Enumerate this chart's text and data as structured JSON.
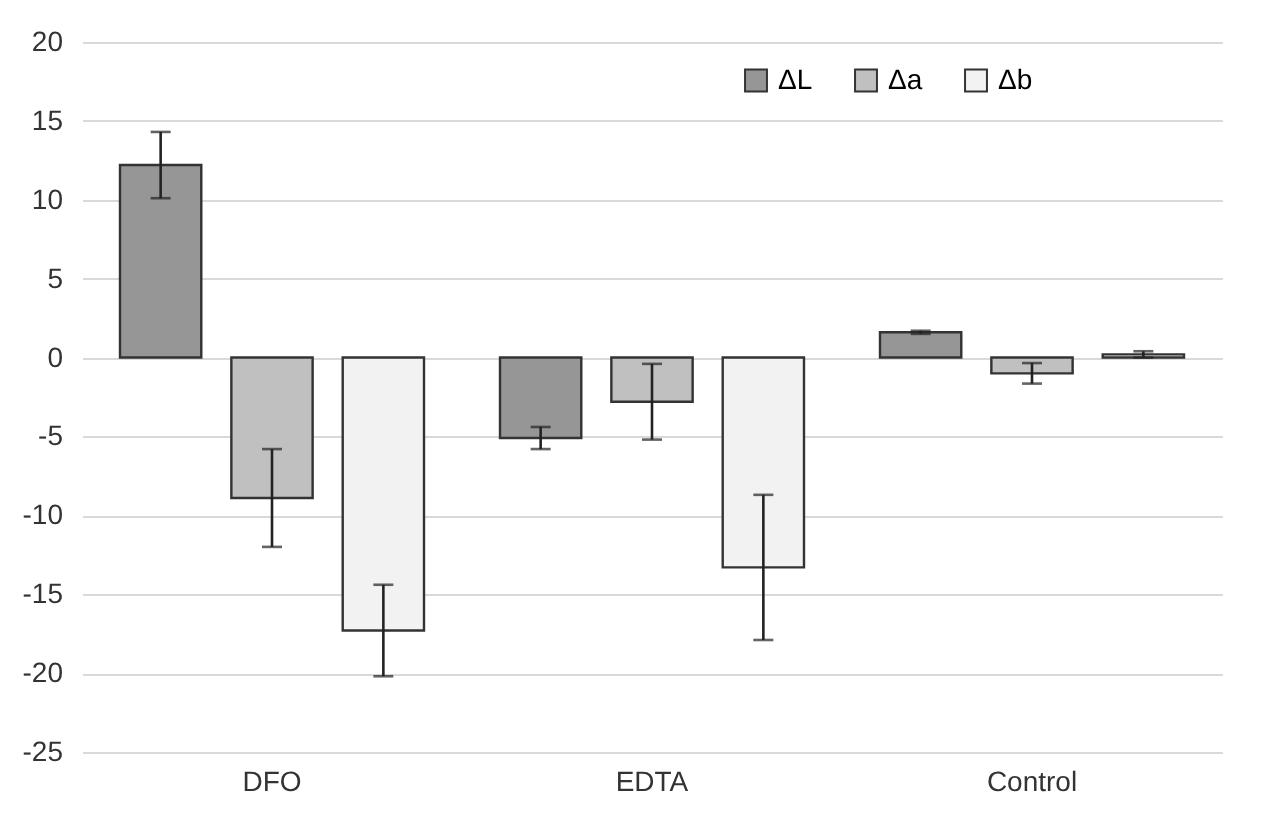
{
  "chart_data": {
    "type": "bar",
    "categories": [
      "DFO",
      "EDTA",
      "Control"
    ],
    "series": [
      {
        "name": "ΔL",
        "color": "#969696",
        "values": [
          12.2,
          -5.1,
          1.6
        ],
        "errors": [
          2.1,
          0.7,
          0.1
        ]
      },
      {
        "name": "Δa",
        "color": "#c0c0c0",
        "values": [
          -8.9,
          -2.8,
          -1.0
        ],
        "errors": [
          3.1,
          2.4,
          0.65
        ]
      },
      {
        "name": "Δb",
        "color": "#f2f2f2",
        "values": [
          -17.3,
          -13.3,
          0.2
        ],
        "errors": [
          2.9,
          4.6,
          0.2
        ]
      }
    ],
    "ylim": [
      -25,
      20
    ],
    "yticks": [
      -25,
      -20,
      -15,
      -10,
      -5,
      0,
      5,
      10,
      15,
      20
    ],
    "grid": "y",
    "legend": "top right"
  }
}
